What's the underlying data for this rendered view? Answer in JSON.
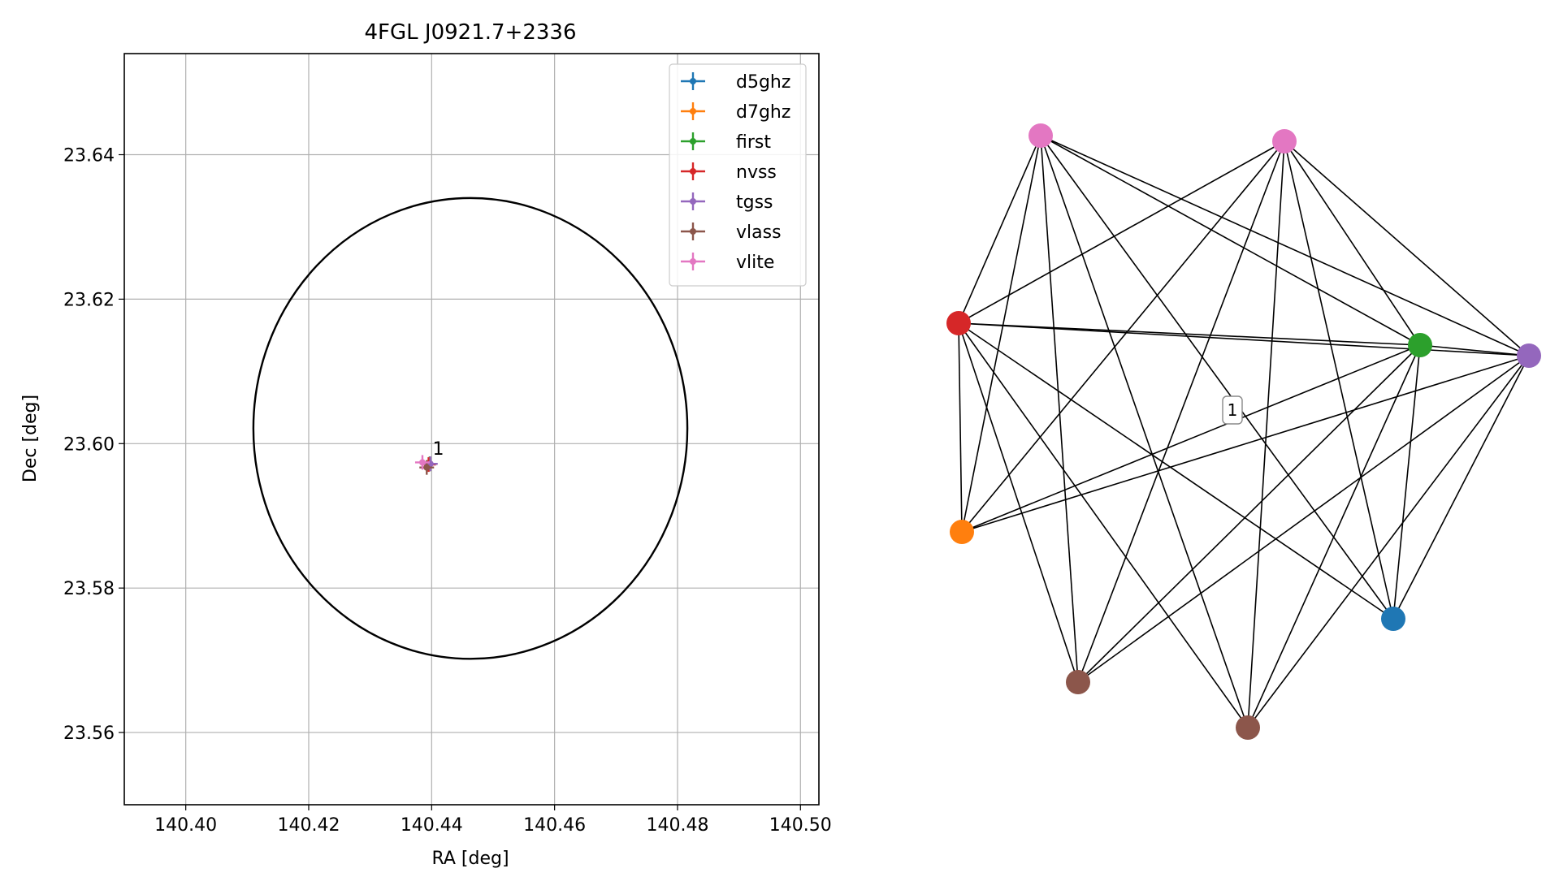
{
  "chart_data": [
    {
      "type": "scatter",
      "title": "4FGL J0921.7+2336",
      "xlabel": "RA [deg]",
      "ylabel": "Dec [deg]",
      "xlim": [
        140.39,
        140.503
      ],
      "ylim": [
        23.55,
        23.654
      ],
      "grid": true,
      "legend_position": "top-right",
      "xticks": [
        140.4,
        140.42,
        140.44,
        140.46,
        140.48,
        140.5
      ],
      "yticks": [
        23.56,
        23.58,
        23.6,
        23.62,
        23.64
      ],
      "xtick_labels": [
        "140.40",
        "140.42",
        "140.44",
        "140.46",
        "140.48",
        "140.50"
      ],
      "ytick_labels": [
        "23.56",
        "23.58",
        "23.60",
        "23.62",
        "23.64"
      ],
      "series": [
        {
          "name": "d5ghz",
          "color": "#1f77b4",
          "x": [
            140.4397
          ],
          "y": [
            23.5972
          ]
        },
        {
          "name": "d7ghz",
          "color": "#ff7f0e",
          "x": [
            140.4397
          ],
          "y": [
            23.5972
          ]
        },
        {
          "name": "first",
          "color": "#2ca02c",
          "x": [
            140.4397
          ],
          "y": [
            23.5972
          ]
        },
        {
          "name": "nvss",
          "color": "#d62728",
          "x": [
            140.4395
          ],
          "y": [
            23.5971
          ]
        },
        {
          "name": "tgss",
          "color": "#9467bd",
          "x": [
            140.4398
          ],
          "y": [
            23.5972
          ]
        },
        {
          "name": "vlass",
          "color": "#8c564b",
          "x": [
            140.4392
          ],
          "y": [
            23.5967
          ]
        },
        {
          "name": "vlite",
          "color": "#e377c2",
          "x": [
            140.4385
          ],
          "y": [
            23.5974
          ]
        }
      ],
      "annotations": [
        {
          "text": "1",
          "x": 140.4399,
          "y": 23.5987
        }
      ],
      "ellipse": {
        "center_x": 140.4463,
        "center_y": 23.6021,
        "ra_half_width": 0.0353,
        "dec_half_height": 0.0319,
        "color": "#000000"
      }
    },
    {
      "type": "network",
      "nodes": [
        {
          "id": "vlite_a",
          "color": "#e377c2"
        },
        {
          "id": "vlite_b",
          "color": "#e377c2"
        },
        {
          "id": "nvss",
          "color": "#d62728"
        },
        {
          "id": "first",
          "color": "#2ca02c"
        },
        {
          "id": "tgss",
          "color": "#9467bd"
        },
        {
          "id": "d7ghz",
          "color": "#ff7f0e"
        },
        {
          "id": "d5ghz",
          "color": "#1f77b4"
        },
        {
          "id": "vlass_a",
          "color": "#8c564b"
        },
        {
          "id": "vlass_b",
          "color": "#8c564b"
        }
      ],
      "edges": [
        [
          "vlite_a",
          "nvss"
        ],
        [
          "vlite_a",
          "d7ghz"
        ],
        [
          "vlite_a",
          "first"
        ],
        [
          "vlite_a",
          "tgss"
        ],
        [
          "vlite_a",
          "vlass_a"
        ],
        [
          "vlite_a",
          "vlass_b"
        ],
        [
          "vlite_a",
          "d5ghz"
        ],
        [
          "vlite_b",
          "nvss"
        ],
        [
          "vlite_b",
          "d7ghz"
        ],
        [
          "vlite_b",
          "first"
        ],
        [
          "vlite_b",
          "tgss"
        ],
        [
          "vlite_b",
          "vlass_a"
        ],
        [
          "vlite_b",
          "vlass_b"
        ],
        [
          "vlite_b",
          "d5ghz"
        ],
        [
          "nvss",
          "first"
        ],
        [
          "nvss",
          "tgss"
        ],
        [
          "nvss",
          "d7ghz"
        ],
        [
          "nvss",
          "vlass_a"
        ],
        [
          "nvss",
          "vlass_b"
        ],
        [
          "nvss",
          "d5ghz"
        ],
        [
          "first",
          "d7ghz"
        ],
        [
          "first",
          "vlass_a"
        ],
        [
          "first",
          "vlass_b"
        ],
        [
          "first",
          "d5ghz"
        ],
        [
          "first",
          "tgss"
        ],
        [
          "tgss",
          "d7ghz"
        ],
        [
          "tgss",
          "vlass_a"
        ],
        [
          "tgss",
          "vlass_b"
        ],
        [
          "tgss",
          "d5ghz"
        ]
      ],
      "labels": [
        {
          "text": "1"
        }
      ]
    }
  ]
}
